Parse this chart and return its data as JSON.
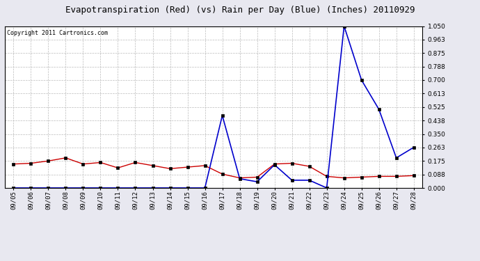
{
  "title": "Evapotranspiration (Red) (vs) Rain per Day (Blue) (Inches) 20110929",
  "copyright": "Copyright 2011 Cartronics.com",
  "dates": [
    "09/05",
    "09/06",
    "09/07",
    "09/08",
    "09/09",
    "09/10",
    "09/11",
    "09/12",
    "09/13",
    "09/14",
    "09/15",
    "09/16",
    "09/17",
    "09/18",
    "09/19",
    "09/20",
    "09/21",
    "09/22",
    "09/23",
    "09/24",
    "09/25",
    "09/26",
    "09/27",
    "09/28"
  ],
  "red_et": [
    0.155,
    0.16,
    0.175,
    0.195,
    0.155,
    0.165,
    0.13,
    0.165,
    0.145,
    0.125,
    0.135,
    0.145,
    0.09,
    0.065,
    0.07,
    0.155,
    0.16,
    0.14,
    0.075,
    0.065,
    0.07,
    0.075,
    0.075,
    0.08
  ],
  "blue_rain": [
    0.0,
    0.0,
    0.0,
    0.0,
    0.0,
    0.0,
    0.0,
    0.0,
    0.0,
    0.0,
    0.0,
    0.0,
    0.47,
    0.06,
    0.04,
    0.15,
    0.05,
    0.05,
    0.0,
    1.05,
    0.7,
    0.51,
    0.195,
    0.263
  ],
  "red_color": "#cc0000",
  "blue_color": "#0000cc",
  "bg_color": "#e8e8f0",
  "plot_bg_color": "#ffffff",
  "grid_color": "#bbbbbb",
  "ylim": [
    0.0,
    1.05
  ],
  "yticks": [
    0.0,
    0.088,
    0.175,
    0.263,
    0.35,
    0.438,
    0.525,
    0.613,
    0.7,
    0.788,
    0.875,
    0.963,
    1.05
  ],
  "title_fontsize": 9,
  "copyright_fontsize": 6,
  "tick_fontsize": 6.5
}
